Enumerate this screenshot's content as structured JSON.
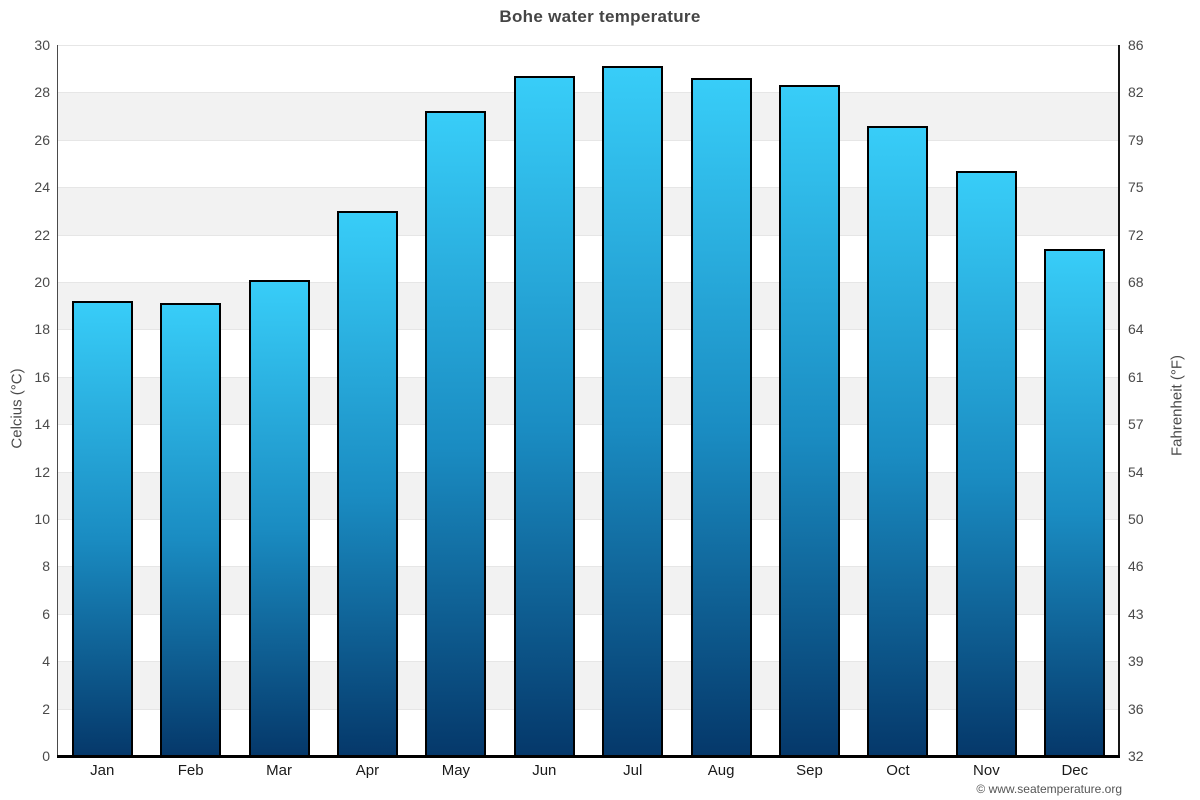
{
  "title": "Bohe water temperature",
  "copyright": "© www.seatemperature.org",
  "axes": {
    "left_title": "Celcius (°C)",
    "right_title": "Fahrenheit (°F)"
  },
  "chart_data": {
    "type": "bar",
    "title": "Bohe water temperature",
    "categories": [
      "Jan",
      "Feb",
      "Mar",
      "Apr",
      "May",
      "Jun",
      "Jul",
      "Aug",
      "Sep",
      "Oct",
      "Nov",
      "Dec"
    ],
    "values": [
      19.2,
      19.1,
      20.1,
      23.0,
      27.2,
      28.7,
      29.1,
      28.6,
      28.3,
      26.6,
      24.7,
      21.4
    ],
    "xlabel": "",
    "ylabel_left": "Celcius (°C)",
    "ylabel_right": "Fahrenheit (°F)",
    "ylim_celsius": [
      0,
      30
    ],
    "celsius_ticks": [
      0,
      2,
      4,
      6,
      8,
      10,
      12,
      14,
      16,
      18,
      20,
      22,
      24,
      26,
      28,
      30
    ],
    "fahrenheit_ticks": [
      32,
      36,
      39,
      43,
      46,
      50,
      54,
      57,
      61,
      64,
      68,
      72,
      75,
      79,
      82,
      86
    ],
    "grid": "alternating horizontal bands every 2°C, white and light gray, gray band just below each even gridline starting at 28-26",
    "legend": "none",
    "colors": {
      "bar_gradient_top": "#38cdf8",
      "bar_gradient_mid": "#1a8cc2",
      "bar_gradient_bottom": "#05386a",
      "bar_border": "#000000",
      "band_gray": "#f2f2f2",
      "band_white": "#ffffff",
      "gridline": "#e6e6e6",
      "title_color": "#454545",
      "tick_color": "#4a4a4a"
    }
  }
}
